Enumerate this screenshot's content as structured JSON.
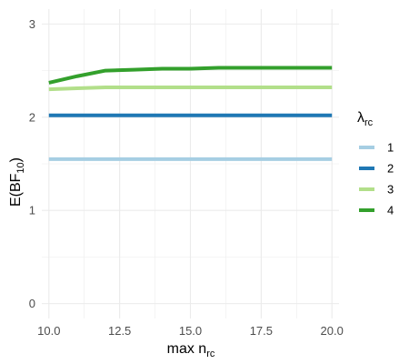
{
  "chart_data": {
    "type": "line",
    "x": [
      10,
      11,
      12,
      13,
      14,
      15,
      16,
      17,
      18,
      19,
      20
    ],
    "series": [
      {
        "name": "1",
        "color": "#a6cee3",
        "values": [
          1.55,
          1.55,
          1.55,
          1.55,
          1.55,
          1.55,
          1.55,
          1.55,
          1.55,
          1.55,
          1.55
        ]
      },
      {
        "name": "2",
        "color": "#1f78b4",
        "values": [
          2.02,
          2.02,
          2.02,
          2.02,
          2.02,
          2.02,
          2.02,
          2.02,
          2.02,
          2.02,
          2.02
        ]
      },
      {
        "name": "3",
        "color": "#b2df8a",
        "values": [
          2.3,
          2.31,
          2.32,
          2.32,
          2.32,
          2.32,
          2.32,
          2.32,
          2.32,
          2.32,
          2.32
        ]
      },
      {
        "name": "4",
        "color": "#33a02c",
        "values": [
          2.37,
          2.44,
          2.5,
          2.51,
          2.52,
          2.52,
          2.53,
          2.53,
          2.53,
          2.53,
          2.53
        ]
      }
    ],
    "xlim": [
      9.75,
      20.25
    ],
    "ylim": [
      -0.16,
      3.16
    ],
    "xticks": [
      10,
      12.5,
      15,
      17.5,
      20
    ],
    "xtick_labels": [
      "10.0",
      "12.5",
      "15.0",
      "17.5",
      "20.0"
    ],
    "yticks": [
      0,
      1,
      2,
      3
    ],
    "ytick_labels": [
      "0",
      "1",
      "2",
      "3"
    ],
    "xlabel": {
      "main": "max n",
      "sub": "rc"
    },
    "ylabel": {
      "main": "E(BF",
      "sub": "10",
      "close": ")"
    },
    "legend": {
      "title_main": "λ",
      "title_sub": "rc",
      "position": "right"
    },
    "grid": true,
    "gridColor": "#ebebeb"
  }
}
